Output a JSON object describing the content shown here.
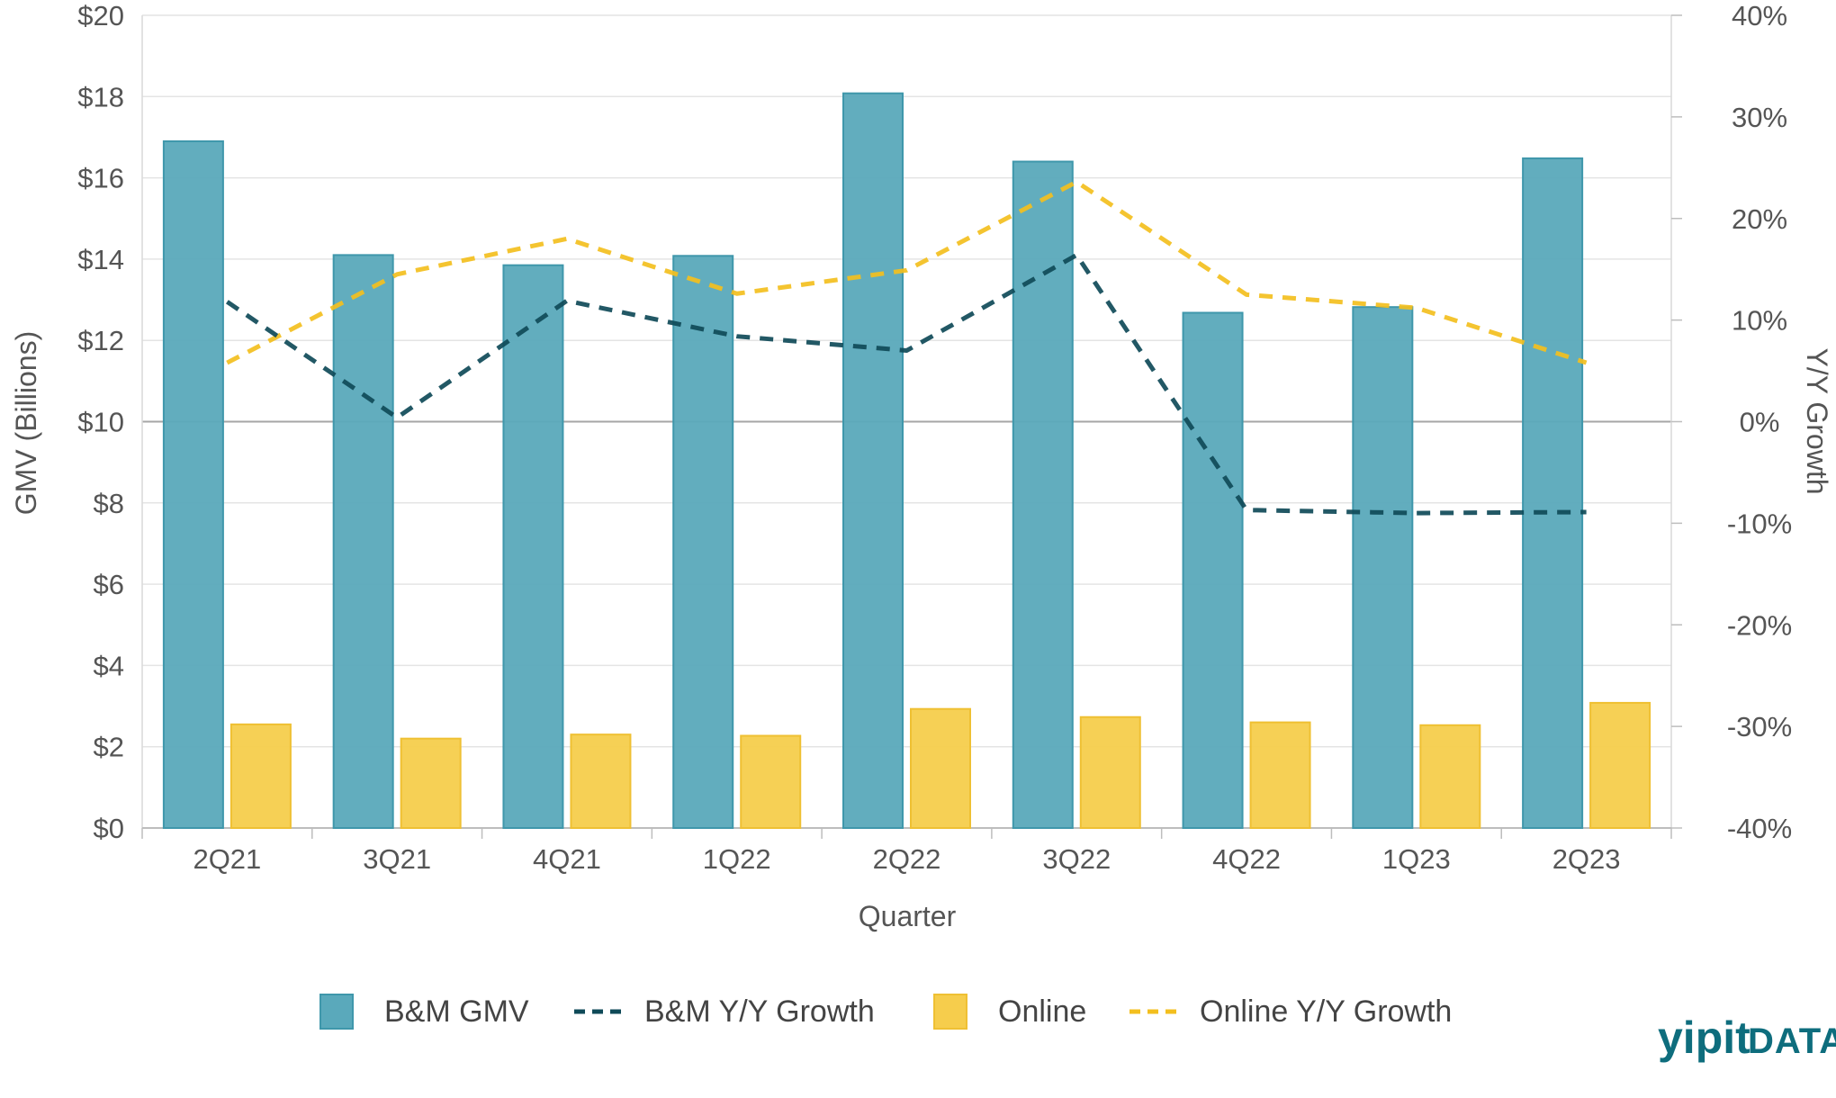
{
  "chart_data": {
    "type": "bar",
    "title": "",
    "xlabel": "Quarter",
    "ylabel": "GMV (Billions)",
    "y2label": "Y/Y Growth",
    "categories": [
      "2Q21",
      "3Q21",
      "4Q21",
      "1Q22",
      "2Q22",
      "3Q22",
      "4Q22",
      "1Q23",
      "2Q23"
    ],
    "ylim": [
      0,
      20
    ],
    "y2lim": [
      -40,
      40
    ],
    "yticks": [
      "$0",
      "$2",
      "$4",
      "$6",
      "$8",
      "$10",
      "$12",
      "$14",
      "$16",
      "$18",
      "$20"
    ],
    "y2ticks": [
      "-40%",
      "-30%",
      "-20%",
      "-10%",
      "0%",
      "10%",
      "20%",
      "30%",
      "40%"
    ],
    "series": [
      {
        "name": "B&M GMV",
        "kind": "bar",
        "axis": "left",
        "color": "#5aa9bb",
        "values": [
          16.9,
          14.1,
          13.85,
          14.08,
          18.08,
          16.4,
          12.68,
          12.82,
          16.48
        ]
      },
      {
        "name": "Online",
        "kind": "bar",
        "axis": "left",
        "color": "#f6cd4c",
        "values": [
          2.55,
          2.2,
          2.3,
          2.27,
          2.93,
          2.73,
          2.6,
          2.53,
          3.08
        ]
      },
      {
        "name": "B&M Y/Y Growth",
        "kind": "line",
        "axis": "right",
        "color": "#0f4a58",
        "dashed": true,
        "values": [
          11.8,
          0.4,
          11.9,
          8.4,
          7.0,
          16.4,
          -8.7,
          -9.0,
          -8.9
        ]
      },
      {
        "name": "Online Y/Y Growth",
        "kind": "line",
        "axis": "right",
        "color": "#f3bf1e",
        "dashed": true,
        "values": [
          5.8,
          14.5,
          18.0,
          12.6,
          14.9,
          23.6,
          12.5,
          11.2,
          5.8
        ]
      }
    ],
    "legend": [
      "B&M GMV",
      "B&M Y/Y Growth",
      "Online",
      "Online Y/Y Growth"
    ],
    "legend_position": "bottom",
    "grid": true
  },
  "branding": {
    "main": "yipit",
    "sub": "DATA"
  }
}
